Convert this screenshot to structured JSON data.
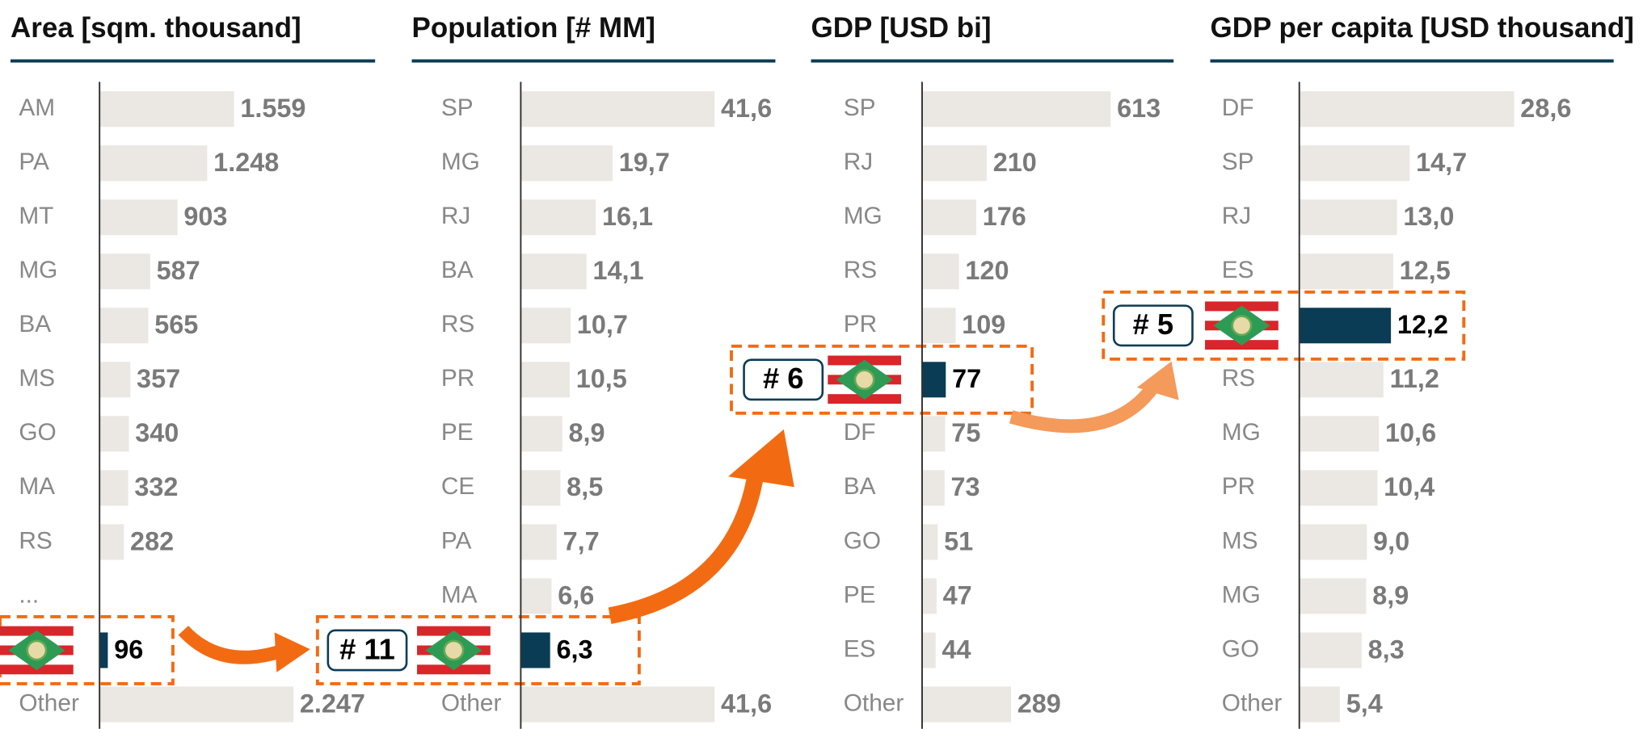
{
  "chart_data": [
    {
      "type": "bar",
      "title": "Area [sqm. thousand]",
      "categories": [
        "AM",
        "PA",
        "MT",
        "MG",
        "BA",
        "MS",
        "GO",
        "MA",
        "RS",
        "...",
        null,
        "Other"
      ],
      "values": [
        1559,
        1248,
        903,
        587,
        565,
        357,
        340,
        332,
        282,
        null,
        96,
        2247
      ],
      "value_labels": [
        "1.559",
        "1.248",
        "903",
        "587",
        "565",
        "357",
        "340",
        "332",
        "282",
        null,
        "96",
        "2.247"
      ],
      "color": "#ebe7e3",
      "highlight_color": "#0b3c55"
    },
    {
      "type": "bar",
      "title": "Population [# MM]",
      "categories": [
        "SP",
        "MG",
        "RJ",
        "BA",
        "RS",
        "PR",
        "PE",
        "CE",
        "PA",
        "MA",
        null,
        "Other"
      ],
      "values": [
        41.6,
        19.7,
        16.1,
        14.1,
        10.7,
        10.5,
        8.9,
        8.5,
        7.7,
        6.6,
        6.3,
        41.6
      ],
      "value_labels": [
        "41,6",
        "19,7",
        "16,1",
        "14,1",
        "10,7",
        "10,5",
        "8,9",
        "8,5",
        "7,7",
        "6,6",
        "6,3",
        "41,6"
      ],
      "color": "#ebe7e3",
      "highlight_color": "#0b3c55",
      "rank": "# 11"
    },
    {
      "type": "bar",
      "title": "GDP [USD bi]",
      "categories": [
        "SP",
        "RJ",
        "MG",
        "RS",
        "PR",
        null,
        "DF",
        "BA",
        "GO",
        "PE",
        "ES",
        "Other"
      ],
      "values": [
        613,
        210,
        176,
        120,
        109,
        77,
        75,
        73,
        51,
        47,
        44,
        289
      ],
      "color": "#ebe7e3",
      "highlight_color": "#0b3c55",
      "rank": "# 6"
    },
    {
      "type": "bar",
      "title": "GDP per capita [USD thousand]",
      "categories": [
        "DF",
        "SP",
        "RJ",
        "ES",
        null,
        "RS",
        "MG",
        "PR",
        "MS",
        "MG",
        "GO",
        "Other"
      ],
      "values": [
        28.6,
        14.7,
        13.0,
        12.5,
        12.2,
        11.2,
        10.6,
        10.4,
        9.0,
        8.9,
        8.3,
        5.4
      ],
      "value_labels": [
        "28,6",
        "14,7",
        "13,0",
        "12,5",
        "12,2",
        "11,2",
        "10,6",
        "10,4",
        "9,0",
        "8,9",
        "8,3",
        "5,4"
      ],
      "color": "#ebe7e3",
      "highlight_color": "#0b3c55",
      "rank": "# 5"
    }
  ]
}
